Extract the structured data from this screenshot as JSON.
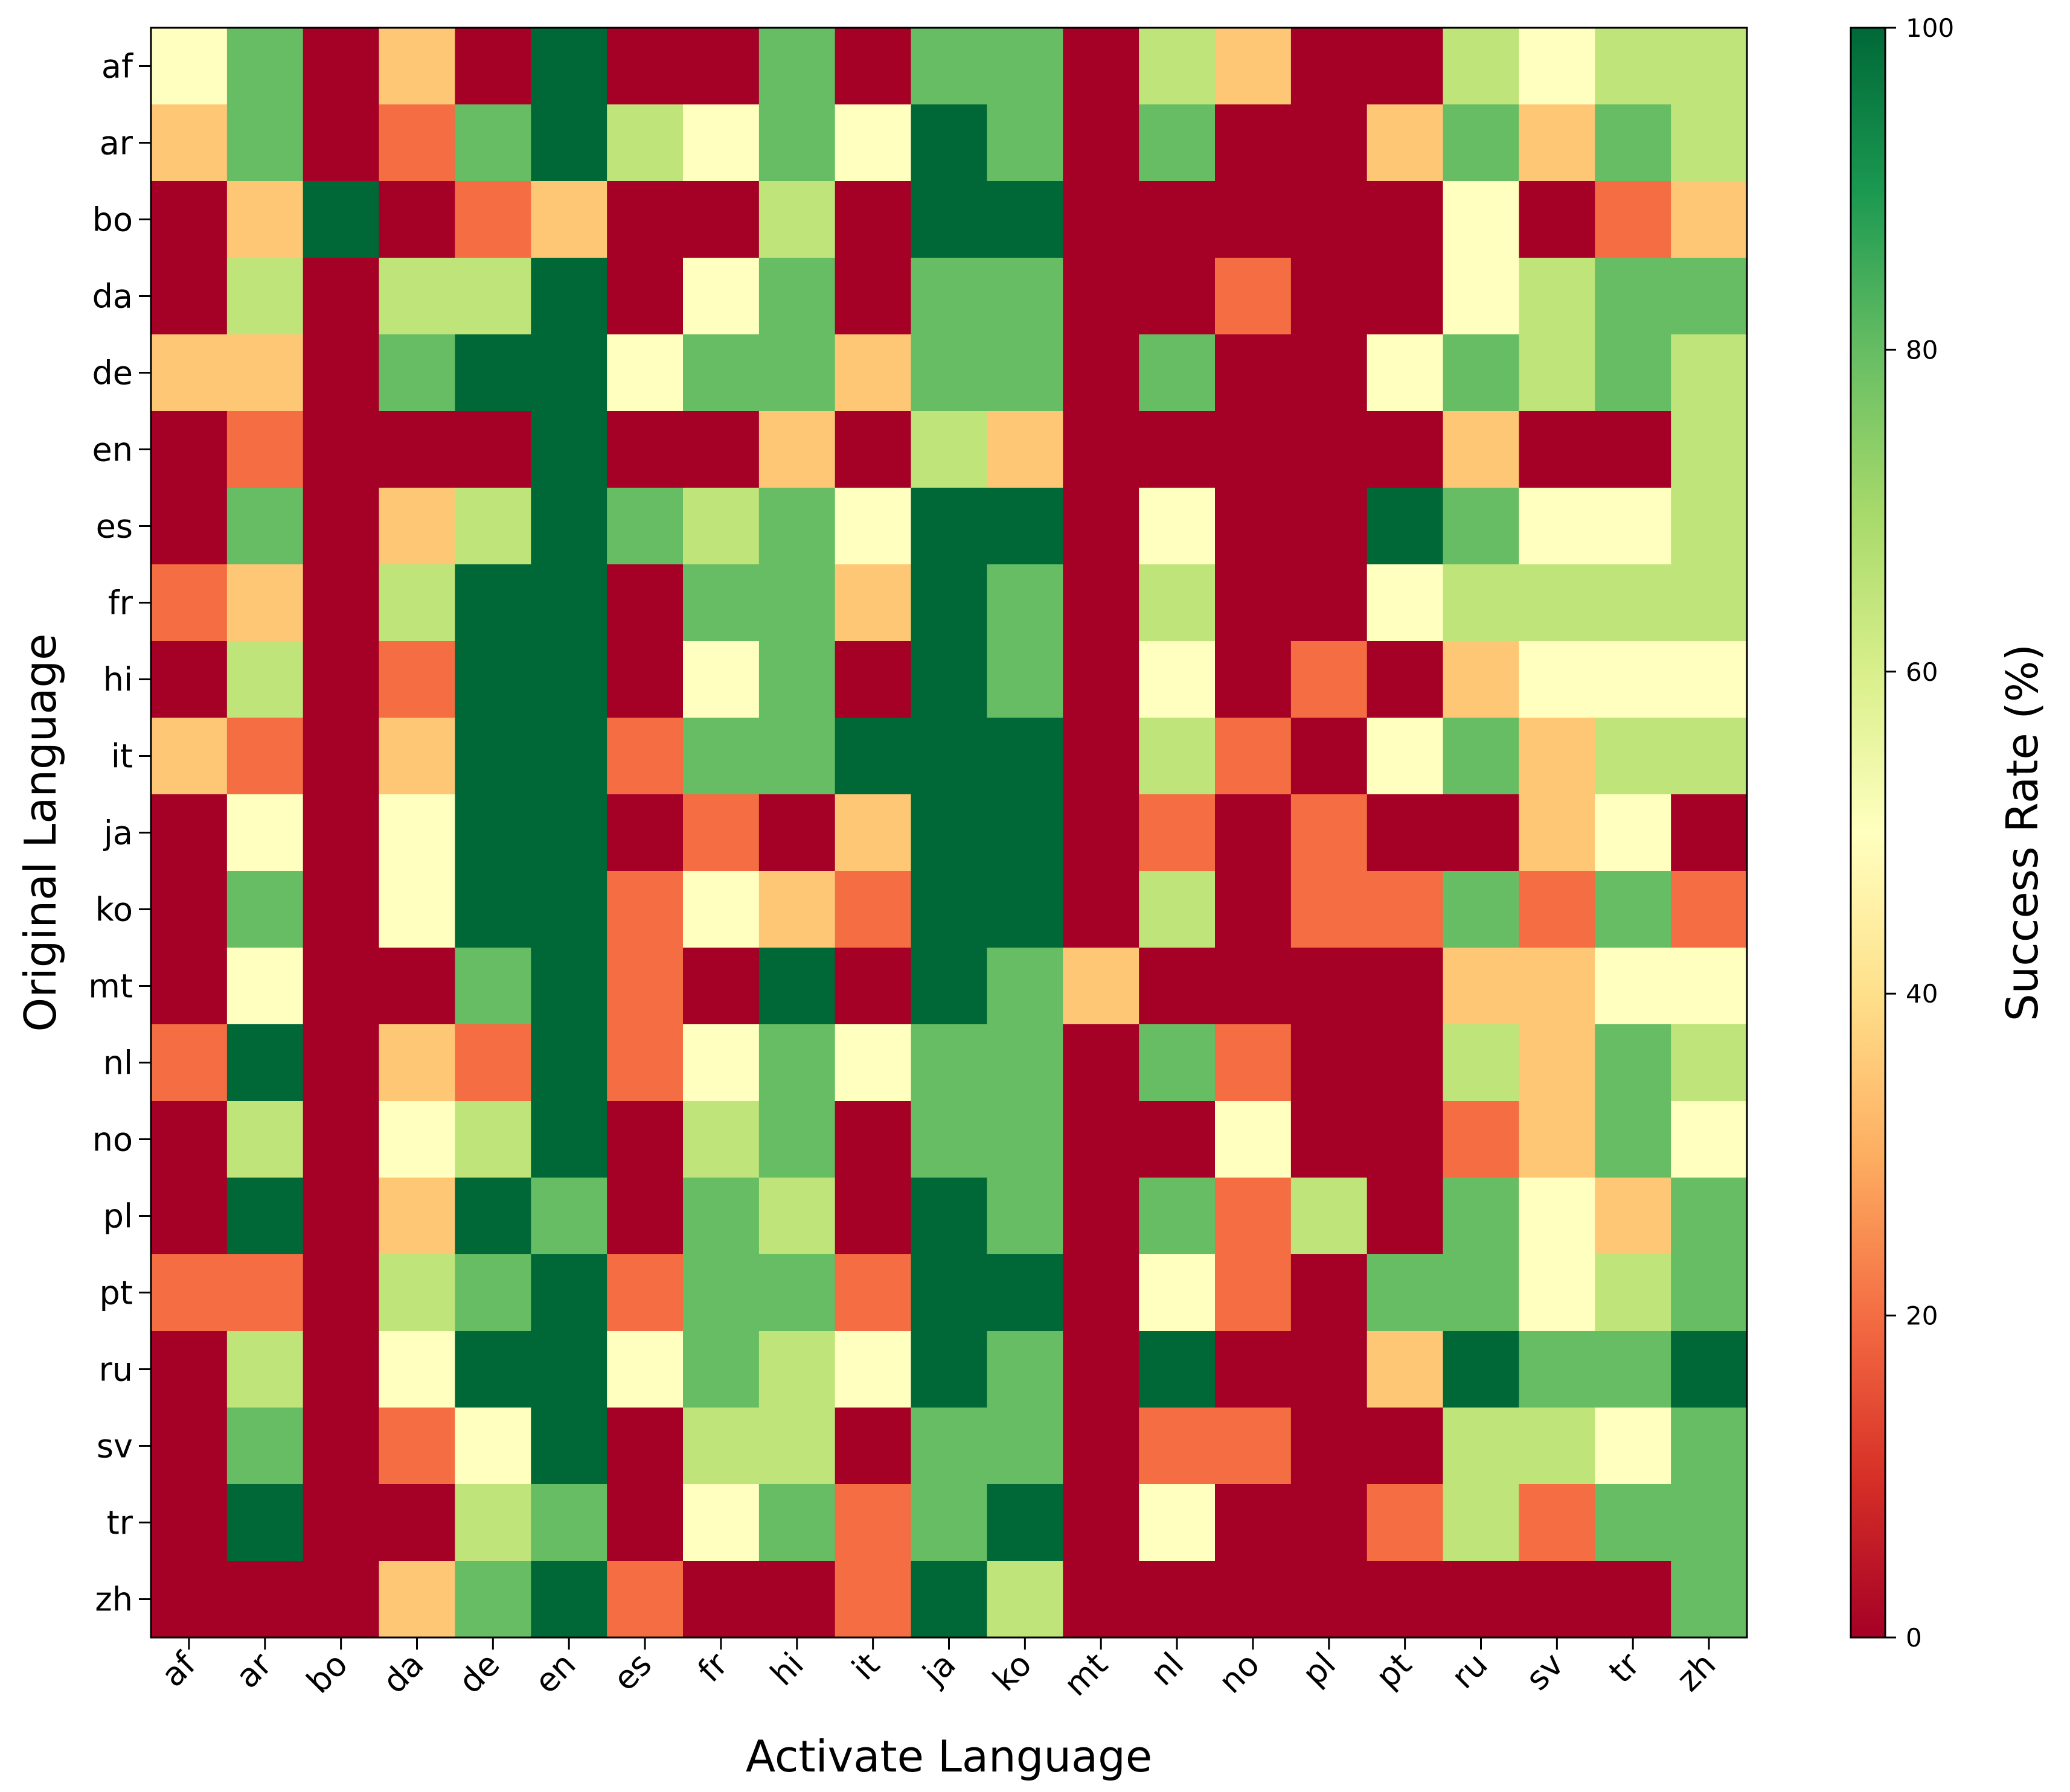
{
  "chart_data": {
    "type": "heatmap",
    "xlabel": "Activate Language",
    "ylabel": "Original Language",
    "x_categories": [
      "af",
      "ar",
      "bo",
      "da",
      "de",
      "en",
      "es",
      "fr",
      "hi",
      "it",
      "ja",
      "ko",
      "mt",
      "nl",
      "no",
      "pl",
      "pt",
      "ru",
      "sv",
      "tr",
      "zh"
    ],
    "y_categories": [
      "af",
      "ar",
      "bo",
      "da",
      "de",
      "en",
      "es",
      "fr",
      "hi",
      "it",
      "ja",
      "ko",
      "mt",
      "nl",
      "no",
      "pl",
      "pt",
      "ru",
      "sv",
      "tr",
      "zh"
    ],
    "colorbar": {
      "label": "Success Rate (%)",
      "range": [
        0,
        100
      ],
      "ticks": [
        "0",
        "20",
        "40",
        "60",
        "80",
        "100"
      ],
      "colormap": "RdYlGn"
    },
    "values": [
      [
        50,
        80,
        0,
        35,
        0,
        100,
        0,
        0,
        80,
        0,
        80,
        80,
        0,
        65,
        35,
        0,
        0,
        65,
        50,
        65,
        65
      ],
      [
        35,
        80,
        0,
        20,
        80,
        100,
        65,
        50,
        80,
        50,
        100,
        80,
        0,
        80,
        0,
        0,
        35,
        80,
        35,
        80,
        65
      ],
      [
        0,
        35,
        100,
        0,
        20,
        35,
        0,
        0,
        65,
        0,
        100,
        100,
        0,
        0,
        0,
        0,
        0,
        50,
        0,
        20,
        35
      ],
      [
        0,
        65,
        0,
        65,
        65,
        100,
        0,
        50,
        80,
        0,
        80,
        80,
        0,
        0,
        20,
        0,
        0,
        50,
        65,
        80,
        80
      ],
      [
        35,
        35,
        0,
        80,
        100,
        100,
        50,
        80,
        80,
        35,
        80,
        80,
        0,
        80,
        0,
        0,
        50,
        80,
        65,
        80,
        65
      ],
      [
        0,
        20,
        0,
        0,
        0,
        100,
        0,
        0,
        35,
        0,
        65,
        35,
        0,
        0,
        0,
        0,
        0,
        35,
        0,
        0,
        65
      ],
      [
        0,
        80,
        0,
        35,
        65,
        100,
        80,
        65,
        80,
        50,
        100,
        100,
        0,
        50,
        0,
        0,
        100,
        80,
        50,
        50,
        65
      ],
      [
        20,
        35,
        0,
        65,
        100,
        100,
        0,
        80,
        80,
        35,
        100,
        80,
        0,
        65,
        0,
        0,
        50,
        65,
        65,
        65,
        65
      ],
      [
        0,
        65,
        0,
        20,
        100,
        100,
        0,
        50,
        80,
        0,
        100,
        80,
        0,
        50,
        0,
        20,
        0,
        35,
        50,
        50,
        50
      ],
      [
        35,
        20,
        0,
        35,
        100,
        100,
        20,
        80,
        80,
        100,
        100,
        100,
        0,
        65,
        20,
        0,
        50,
        80,
        35,
        65,
        65
      ],
      [
        0,
        50,
        0,
        50,
        100,
        100,
        0,
        20,
        0,
        35,
        100,
        100,
        0,
        20,
        0,
        20,
        0,
        0,
        35,
        50,
        0
      ],
      [
        0,
        80,
        0,
        50,
        100,
        100,
        20,
        50,
        35,
        20,
        100,
        100,
        0,
        65,
        0,
        20,
        20,
        80,
        20,
        80,
        20
      ],
      [
        0,
        50,
        0,
        0,
        80,
        100,
        20,
        0,
        100,
        0,
        100,
        80,
        35,
        0,
        0,
        0,
        0,
        35,
        35,
        50,
        50
      ],
      [
        20,
        100,
        0,
        35,
        20,
        100,
        20,
        50,
        80,
        50,
        80,
        80,
        0,
        80,
        20,
        0,
        0,
        65,
        35,
        80,
        65
      ],
      [
        0,
        65,
        0,
        50,
        65,
        100,
        0,
        65,
        80,
        0,
        80,
        80,
        0,
        0,
        50,
        0,
        0,
        20,
        35,
        80,
        50
      ],
      [
        0,
        100,
        0,
        35,
        100,
        80,
        0,
        80,
        65,
        0,
        100,
        80,
        0,
        80,
        20,
        65,
        0,
        80,
        50,
        35,
        80
      ],
      [
        20,
        20,
        0,
        65,
        80,
        100,
        20,
        80,
        80,
        20,
        100,
        100,
        0,
        50,
        20,
        0,
        80,
        80,
        50,
        65,
        80
      ],
      [
        0,
        65,
        0,
        50,
        100,
        100,
        50,
        80,
        65,
        50,
        100,
        80,
        0,
        100,
        0,
        0,
        35,
        100,
        80,
        80,
        100
      ],
      [
        0,
        80,
        0,
        20,
        50,
        100,
        0,
        65,
        65,
        0,
        80,
        80,
        0,
        20,
        20,
        0,
        0,
        65,
        65,
        50,
        80
      ],
      [
        0,
        100,
        0,
        0,
        65,
        80,
        0,
        50,
        80,
        20,
        80,
        100,
        0,
        50,
        0,
        0,
        20,
        65,
        20,
        80,
        80
      ],
      [
        0,
        0,
        0,
        35,
        80,
        100,
        20,
        0,
        0,
        20,
        100,
        65,
        0,
        0,
        0,
        0,
        0,
        0,
        0,
        0,
        80
      ]
    ]
  }
}
